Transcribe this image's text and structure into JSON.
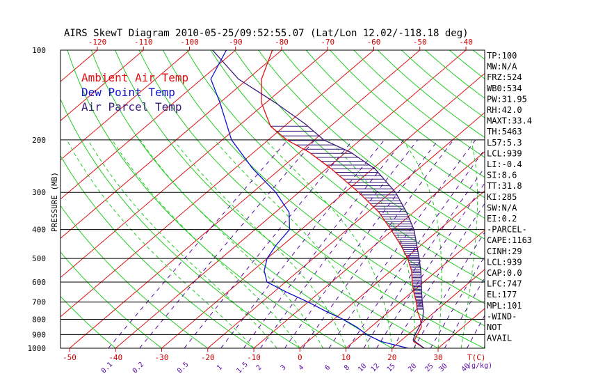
{
  "chart_data": {
    "type": "skewt",
    "title": "AIRS SkewT Diagram 2010-05-25/09:52:55.07 (Lat/Lon 12.02/-118.18 deg)",
    "ylabel": "PRESSURE (MB)",
    "xlabel": "T(C)",
    "mixing_ratio_label": "(g/kg)",
    "pressure_range": [
      1000,
      100
    ],
    "pressure_ticks": [
      100,
      200,
      300,
      400,
      500,
      600,
      700,
      800,
      900,
      1000
    ],
    "temp_ticks_bottom": [
      -50,
      -40,
      -30,
      -20,
      -10,
      0,
      10,
      20,
      30
    ],
    "temp_ticks_top": [
      -120,
      -110,
      -100,
      -90,
      -80,
      -70,
      -60,
      -50,
      -40
    ],
    "mixing_ratio_ticks": [
      "0.1",
      "0.2",
      "0.5",
      "1",
      "1.5",
      "2",
      "3",
      "4",
      "6",
      "8",
      "10",
      "12",
      "15",
      "20",
      "25",
      "30",
      "40"
    ],
    "legend": [
      {
        "name": "Ambient Air Temp",
        "color": "#dd1111"
      },
      {
        "name": "Dew Point Temp",
        "color": "#1010cc"
      },
      {
        "name": "Air Parcel Temp",
        "color": "#3a1a7a"
      }
    ],
    "colors": {
      "isotherm": "#dd1111",
      "dry_adiabat": "#22cc22",
      "moist_adiabat": "#22cc22",
      "mixing_ratio": "#5a0aa0",
      "isobar": "#000000",
      "cape_hatch": "#3a1a7a"
    },
    "series": [
      {
        "name": "Ambient Air Temp",
        "color": "#dd1111",
        "points": [
          [
            1000,
            27
          ],
          [
            950,
            23
          ],
          [
            900,
            22
          ],
          [
            850,
            21
          ],
          [
            800,
            18.8
          ],
          [
            750,
            16
          ],
          [
            700,
            13.5
          ],
          [
            650,
            10.5
          ],
          [
            600,
            7.5
          ],
          [
            550,
            4.5
          ],
          [
            500,
            0.5
          ],
          [
            450,
            -4.5
          ],
          [
            400,
            -10.5
          ],
          [
            350,
            -17.5
          ],
          [
            300,
            -27
          ],
          [
            250,
            -39
          ],
          [
            220,
            -48
          ],
          [
            200,
            -56
          ],
          [
            180,
            -63
          ],
          [
            150,
            -71
          ],
          [
            125,
            -77
          ],
          [
            100,
            -82
          ]
        ]
      },
      {
        "name": "Dew Point Temp",
        "color": "#1010cc",
        "points": [
          [
            1000,
            23.5
          ],
          [
            950,
            16
          ],
          [
            900,
            11
          ],
          [
            850,
            7
          ],
          [
            800,
            2
          ],
          [
            750,
            -4
          ],
          [
            700,
            -10
          ],
          [
            650,
            -17
          ],
          [
            600,
            -24
          ],
          [
            550,
            -27.5
          ],
          [
            500,
            -30
          ],
          [
            450,
            -31.5
          ],
          [
            400,
            -32.5
          ],
          [
            350,
            -37
          ],
          [
            300,
            -45
          ],
          [
            250,
            -56
          ],
          [
            200,
            -68
          ],
          [
            150,
            -80
          ],
          [
            125,
            -88
          ],
          [
            100,
            -92
          ]
        ]
      },
      {
        "name": "Air Parcel Temp",
        "color": "#3a1a7a",
        "points": [
          [
            1000,
            27
          ],
          [
            939,
            22.5
          ],
          [
            900,
            21.5
          ],
          [
            850,
            20.5
          ],
          [
            800,
            19.3
          ],
          [
            750,
            17.3
          ],
          [
            700,
            14.8
          ],
          [
            650,
            12.2
          ],
          [
            600,
            9.5
          ],
          [
            550,
            6.5
          ],
          [
            500,
            3
          ],
          [
            450,
            -1
          ],
          [
            400,
            -5.5
          ],
          [
            350,
            -11.5
          ],
          [
            300,
            -19
          ],
          [
            250,
            -29.5
          ],
          [
            220,
            -39
          ],
          [
            200,
            -48
          ],
          [
            177,
            -56
          ],
          [
            150,
            -68
          ],
          [
            125,
            -82
          ],
          [
            100,
            -95
          ]
        ]
      }
    ]
  },
  "indices": [
    "TP:100",
    "MW:N/A",
    "FRZ:524",
    "WB0:534",
    "PW:31.95",
    "RH:42.0",
    "MAXT:33.4",
    "TH:5463",
    "L57:5.3",
    "LCL:939",
    "LI:-0.4",
    "SI:8.6",
    "TT:31.8",
    "KI:285",
    "SW:N/A",
    "EI:0.2",
    "-PARCEL-",
    "CAPE:1163",
    "CINH:29",
    "LCL:939",
    "CAP:0.0",
    "LFC:747",
    "EL:177",
    "MPL:101",
    "-WIND-",
    "NOT",
    "AVAIL"
  ]
}
